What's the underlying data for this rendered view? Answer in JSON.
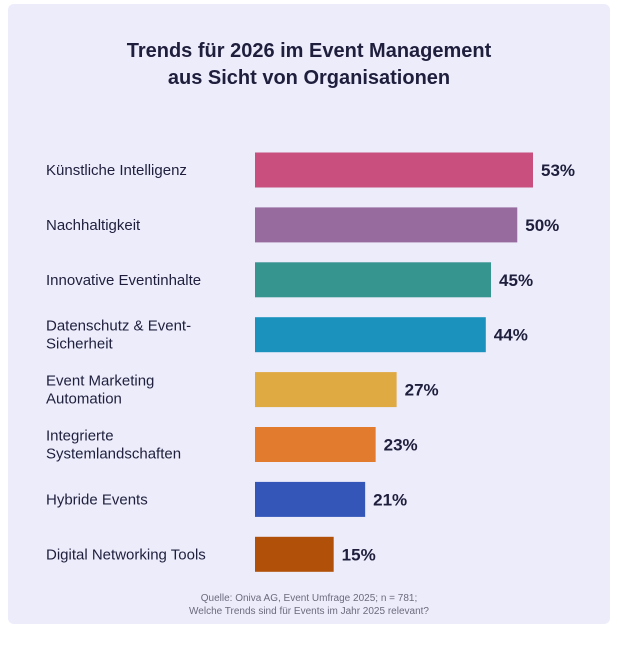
{
  "title_line1": "Trends für 2026 im Event Management",
  "title_line2": "aus Sicht von Organisationen",
  "source_line1": "Quelle: Oniva AG, Event Umfrage 2025; n = 781;",
  "source_line2": "Welche Trends sind für Events im Jahr 2025 relevant?",
  "chart_data": {
    "type": "bar",
    "orientation": "horizontal",
    "title": "Trends für 2026 im Event Management aus Sicht von Organisationen",
    "categories": [
      [
        "Künstliche Intelligenz"
      ],
      [
        "Nachhaltigkeit"
      ],
      [
        "Innovative Eventinhalte"
      ],
      [
        "Datenschutz & Event-",
        "Sicherheit"
      ],
      [
        "Event Marketing",
        "Automation"
      ],
      [
        "Integrierte",
        "Systemlandschaften"
      ],
      [
        "Hybride Events"
      ],
      [
        "Digital Networking Tools"
      ]
    ],
    "values": [
      53,
      50,
      45,
      44,
      27,
      23,
      21,
      15
    ],
    "value_labels": [
      "53%",
      "50%",
      "45%",
      "44%",
      "27%",
      "23%",
      "21%",
      "15%"
    ],
    "unit": "%",
    "colors": [
      "#c94f7f",
      "#986b9e",
      "#36958f",
      "#1b92bd",
      "#e0aa42",
      "#e27b2d",
      "#3456b8",
      "#b15008"
    ],
    "xlim": [
      0,
      53
    ],
    "grid": false,
    "legend": "none"
  }
}
